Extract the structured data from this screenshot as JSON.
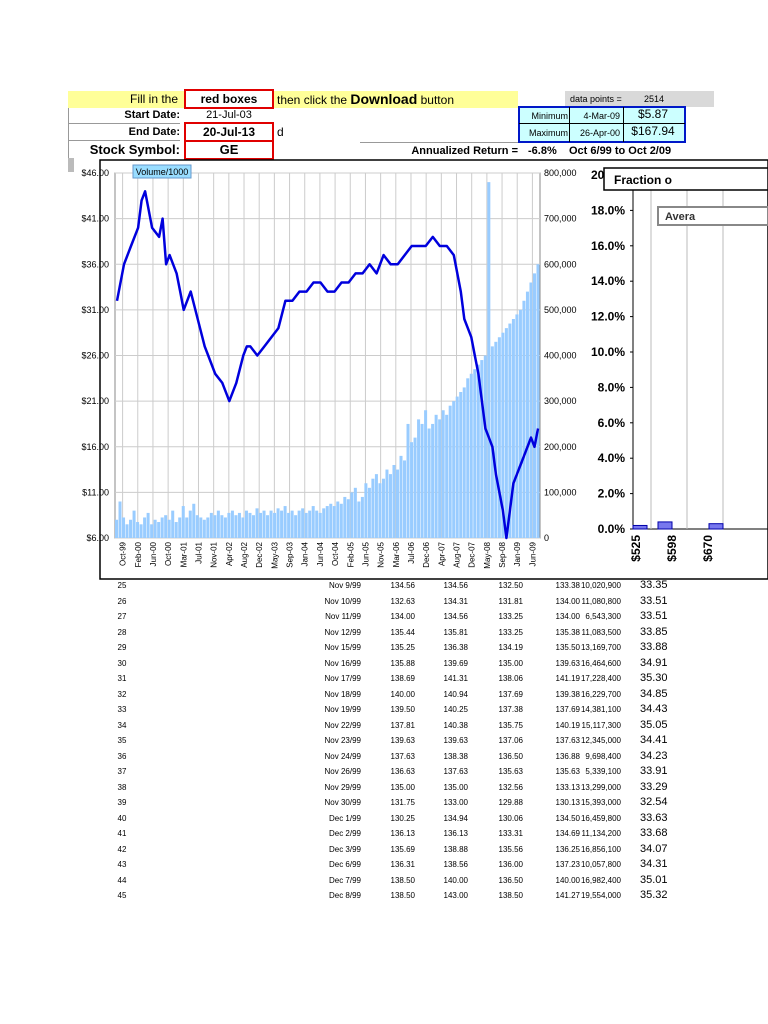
{
  "form": {
    "instruction_pre": "Fill in the",
    "red_boxes_label": "red boxes",
    "instruction_mid": "then click the",
    "download_word": "Download",
    "instruction_post": "button",
    "start_label": "Start Date:",
    "start_value": "21-Jul-03",
    "end_label": "End Date:",
    "end_value": "20-Jul-13",
    "end_suffix": "d",
    "symbol_label": "Stock Symbol:",
    "symbol_value": "GE",
    "annualized_label": "Annualized Return =",
    "annualized_value": "-6.8%",
    "range_text": "Oct 6/99 to Oct 2/09",
    "data_points_label": "data points =",
    "data_points_value": "2514",
    "min_label": "Minimum",
    "min_date": "4-Mar-09",
    "min_price": "$5.87",
    "max_label": "Maximum",
    "max_date": "26-Apr-00",
    "max_price": "$167.94"
  },
  "chart_data": [
    {
      "type": "line",
      "legend": "Volume/1000",
      "price_axis": {
        "min": 6,
        "max": 46,
        "ticks": [
          "$6.00",
          "$11.00",
          "$16.00",
          "$21.00",
          "$26.00",
          "$31.00",
          "$36.00",
          "$41.00",
          "$46.00"
        ]
      },
      "volume_axis": {
        "min": 0,
        "max": 800000,
        "ticks": [
          "0",
          "100,000",
          "200,000",
          "300,000",
          "400,000",
          "500,000",
          "600,000",
          "700,000",
          "800,000"
        ]
      },
      "x_labels": [
        "Oct-99",
        "Feb-00",
        "Jun-00",
        "Oct-00",
        "Mar-01",
        "Jul-01",
        "Nov-01",
        "Apr-02",
        "Aug-02",
        "Dec-02",
        "May-03",
        "Sep-03",
        "Jan-04",
        "Jun-04",
        "Oct-04",
        "Feb-05",
        "Jun-05",
        "Nov-05",
        "Mar-06",
        "Jul-06",
        "Dec-06",
        "Apr-07",
        "Aug-07",
        "Dec-07",
        "May-08",
        "Sep-08",
        "Jan-09",
        "Jun-09"
      ],
      "price_series": {
        "name": "Price",
        "x": [
          0,
          2,
          4,
          6,
          7,
          8,
          10,
          12,
          13,
          14,
          15,
          17,
          18,
          19,
          21,
          23,
          25,
          26,
          28,
          30,
          32,
          34,
          36,
          37,
          38,
          40,
          42,
          44,
          46,
          48,
          50,
          52,
          54,
          56,
          58,
          60,
          62,
          64,
          66,
          68,
          70,
          72,
          74,
          76,
          78,
          80,
          82,
          84,
          86,
          88,
          90,
          92,
          94,
          96,
          97,
          98,
          99,
          100,
          101,
          102,
          103,
          104,
          105,
          106,
          107,
          108,
          109,
          110,
          111,
          112,
          113,
          114,
          115,
          116,
          117,
          118,
          119,
          120
        ],
        "y": [
          32,
          36,
          38,
          40,
          43,
          44,
          40,
          39,
          41,
          36,
          37,
          35,
          33,
          31,
          33,
          30,
          27,
          26,
          24,
          23,
          21,
          23,
          26,
          27,
          27,
          26,
          27,
          28,
          29,
          32,
          32,
          33,
          33,
          34,
          34,
          33,
          33,
          34,
          34,
          35,
          35,
          36,
          35,
          37,
          36,
          36,
          37,
          38,
          38,
          38,
          39,
          38,
          38,
          37,
          35,
          33,
          30,
          29,
          28,
          26,
          24,
          21,
          18,
          17,
          16,
          13,
          11,
          9,
          6,
          9,
          12,
          13,
          14,
          15,
          16,
          17,
          16,
          18
        ]
      },
      "volume_series": {
        "name": "Volume/1000",
        "values": [
          40000,
          80000,
          45000,
          30000,
          40000,
          60000,
          35000,
          30000,
          45000,
          55000,
          30000,
          40000,
          35000,
          45000,
          50000,
          40000,
          60000,
          35000,
          45000,
          70000,
          45000,
          60000,
          75000,
          50000,
          45000,
          40000,
          45000,
          55000,
          50000,
          60000,
          50000,
          45000,
          55000,
          60000,
          50000,
          55000,
          45000,
          60000,
          55000,
          50000,
          65000,
          55000,
          60000,
          50000,
          60000,
          55000,
          65000,
          60000,
          70000,
          55000,
          60000,
          50000,
          60000,
          65000,
          55000,
          60000,
          70000,
          60000,
          55000,
          65000,
          70000,
          75000,
          70000,
          80000,
          75000,
          90000,
          85000,
          100000,
          110000,
          80000,
          90000,
          120000,
          110000,
          130000,
          140000,
          120000,
          130000,
          150000,
          140000,
          160000,
          150000,
          180000,
          170000,
          250000,
          210000,
          220000,
          260000,
          250000,
          280000,
          240000,
          250000,
          270000,
          260000,
          280000,
          270000,
          290000,
          300000,
          310000,
          320000,
          330000,
          350000,
          360000,
          370000,
          380000,
          390000,
          400000,
          410000,
          420000,
          430000,
          440000,
          450000,
          460000,
          470000,
          480000,
          490000,
          500000,
          520000,
          540000,
          560000,
          580000,
          600000
        ],
        "spike_index": 106,
        "spike_value": 780000
      }
    },
    {
      "type": "bar",
      "title": "Fraction o",
      "subtitle": "Avera",
      "y_ticks": [
        "0.0%",
        "2.0%",
        "4.0%",
        "6.0%",
        "8.0%",
        "10.0%",
        "12.0%",
        "14.0%",
        "16.0%",
        "18.0%",
        "20.0%"
      ],
      "ylim": [
        0,
        20
      ],
      "categories": [
        "$525",
        "$598",
        "$670"
      ],
      "values": [
        0.2,
        0.4,
        0.3
      ]
    }
  ],
  "table": {
    "rows": [
      [
        "25",
        "Nov 9/99",
        "134.56",
        "134.56",
        "132.50",
        "133.38",
        "10,020,900",
        "33.35"
      ],
      [
        "26",
        "Nov 10/99",
        "132.63",
        "134.31",
        "131.81",
        "134.00",
        "11,080,800",
        "33.51"
      ],
      [
        "27",
        "Nov 11/99",
        "134.00",
        "134.56",
        "133.25",
        "134.00",
        "6,543,300",
        "33.51"
      ],
      [
        "28",
        "Nov 12/99",
        "135.44",
        "135.81",
        "133.25",
        "135.38",
        "11,083,500",
        "33.85"
      ],
      [
        "29",
        "Nov 15/99",
        "135.25",
        "136.38",
        "134.19",
        "135.50",
        "13,169,700",
        "33.88"
      ],
      [
        "30",
        "Nov 16/99",
        "135.88",
        "139.69",
        "135.00",
        "139.63",
        "16,464,600",
        "34.91"
      ],
      [
        "31",
        "Nov 17/99",
        "138.69",
        "141.31",
        "138.06",
        "141.19",
        "17,228,400",
        "35.30"
      ],
      [
        "32",
        "Nov 18/99",
        "140.00",
        "140.94",
        "137.69",
        "139.38",
        "16,229,700",
        "34.85"
      ],
      [
        "33",
        "Nov 19/99",
        "139.50",
        "140.25",
        "137.38",
        "137.69",
        "14,381,100",
        "34.43"
      ],
      [
        "34",
        "Nov 22/99",
        "137.81",
        "140.38",
        "135.75",
        "140.19",
        "15,117,300",
        "35.05"
      ],
      [
        "35",
        "Nov 23/99",
        "139.63",
        "139.63",
        "137.06",
        "137.63",
        "12,345,000",
        "34.41"
      ],
      [
        "36",
        "Nov 24/99",
        "137.63",
        "138.38",
        "136.50",
        "136.88",
        "9,698,400",
        "34.23"
      ],
      [
        "37",
        "Nov 26/99",
        "136.63",
        "137.63",
        "135.63",
        "135.63",
        "5,339,100",
        "33.91"
      ],
      [
        "38",
        "Nov 29/99",
        "135.00",
        "135.00",
        "132.56",
        "133.13",
        "13,299,000",
        "33.29"
      ],
      [
        "39",
        "Nov 30/99",
        "131.75",
        "133.00",
        "129.88",
        "130.13",
        "15,393,000",
        "32.54"
      ],
      [
        "40",
        "Dec 1/99",
        "130.25",
        "134.94",
        "130.06",
        "134.50",
        "16,459,800",
        "33.63"
      ],
      [
        "41",
        "Dec 2/99",
        "136.13",
        "136.13",
        "133.31",
        "134.69",
        "11,134,200",
        "33.68"
      ],
      [
        "42",
        "Dec 3/99",
        "135.69",
        "138.88",
        "135.56",
        "136.25",
        "16,856,100",
        "34.07"
      ],
      [
        "43",
        "Dec 6/99",
        "136.31",
        "138.56",
        "136.00",
        "137.23",
        "10,057,800",
        "34.31"
      ],
      [
        "44",
        "Dec 7/99",
        "138.50",
        "140.00",
        "136.50",
        "140.00",
        "16,982,400",
        "35.01"
      ],
      [
        "45",
        "Dec 8/99",
        "138.50",
        "143.00",
        "138.50",
        "141.27",
        "19,554,000",
        "35.32"
      ]
    ]
  }
}
